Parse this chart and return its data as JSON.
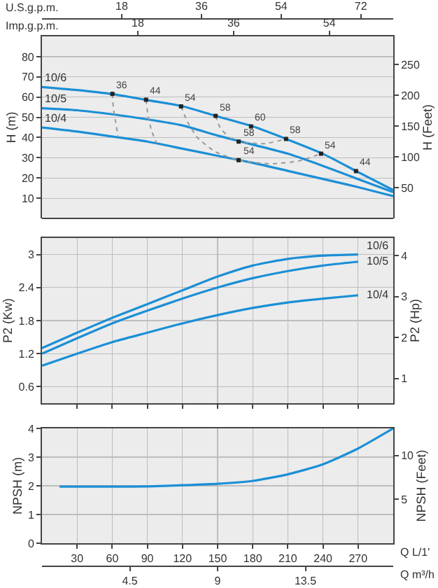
{
  "chart_data": [
    {
      "type": "line",
      "xlabel": "U.S.g.p.m.",
      "xlim": [
        0,
        79.3
      ],
      "xticks": [
        18,
        36,
        54,
        72
      ],
      "ylim": [
        0,
        90
      ],
      "yticks": [
        10,
        20,
        30,
        40,
        50,
        60,
        70,
        80
      ],
      "ylabel": "H (m)",
      "y2label": "H (Feet)",
      "y2lim": [
        0,
        295.3
      ],
      "y2ticks": [
        50,
        100,
        150,
        200,
        250
      ],
      "x2label": "Imp.g.p.m.",
      "x2lim": [
        0,
        66
      ],
      "x2ticks": [
        18,
        36,
        54
      ],
      "grid": "y",
      "legend": false,
      "x": [
        0,
        7.9,
        15.9,
        23.8,
        31.7,
        39.6,
        47.6,
        55.5,
        63.4,
        71.3,
        79.3
      ],
      "annotations": [
        {
          "text": "36",
          "x": 15.9,
          "y": 61.6
        },
        {
          "text": "44",
          "x": 23.5,
          "y": 58.7
        },
        {
          "text": "54",
          "x": 31.4,
          "y": 55.4
        },
        {
          "text": "58",
          "x": 39.2,
          "y": 50.7
        },
        {
          "text": "60",
          "x": 47.2,
          "y": 45.5
        },
        {
          "text": "58",
          "x": 55.1,
          "y": 39.3
        },
        {
          "text": "54",
          "x": 63,
          "y": 32
        },
        {
          "text": "44",
          "x": 70.9,
          "y": 23.4
        },
        {
          "text": "58",
          "x": 44.4,
          "y": 38
        },
        {
          "text": "54",
          "x": 44.4,
          "y": 28.8
        }
      ],
      "series": [
        {
          "name": "10/6",
          "color": "#1a8fd6",
          "values": [
            65,
            63.5,
            61.5,
            58.5,
            55.5,
            50.5,
            45.5,
            39,
            32,
            23,
            14
          ]
        },
        {
          "name": "10/5",
          "color": "#1a8fd6",
          "values": [
            54.5,
            53.5,
            51.5,
            49,
            46,
            41,
            36.5,
            32,
            26,
            19.5,
            13
          ]
        },
        {
          "name": "10/4",
          "color": "#1a8fd6",
          "values": [
            45,
            43,
            40.5,
            38,
            34.5,
            31,
            27.5,
            23.5,
            19.5,
            15.5,
            11
          ]
        },
        {
          "type": "line",
          "line_style": "dotted",
          "color": "#999999",
          "x": [
            15.9,
            16.1,
            16.6,
            17.2
          ],
          "values": [
            61.6,
            55,
            48,
            40.2
          ]
        },
        {
          "type": "line",
          "line_style": "dotted",
          "color": "#999999",
          "x": [
            23.5,
            24,
            24.8,
            25.9
          ],
          "values": [
            58.7,
            50,
            43,
            37.2
          ]
        },
        {
          "type": "line",
          "line_style": "dotted",
          "color": "#999999",
          "x": [
            31.4,
            32.8,
            35.1,
            39.1,
            44.4,
            51.5,
            58.1,
            63
          ],
          "values": [
            55.4,
            48,
            40,
            33,
            28.8,
            27,
            28.5,
            32
          ]
        },
        {
          "type": "line",
          "line_style": "dotted",
          "color": "#999999",
          "x": [
            39.2,
            40.2,
            42.3,
            44.4,
            50.2,
            55.1
          ],
          "values": [
            50.7,
            45,
            40,
            38,
            37,
            39.3
          ]
        },
        {
          "type": "scatter",
          "marker": "square",
          "color": "#222222",
          "x": [
            15.9,
            23.5,
            31.4,
            39.2,
            47.2,
            55.1,
            63,
            70.9,
            44.4,
            44.4
          ],
          "values": [
            61.6,
            58.7,
            55.4,
            50.7,
            45.5,
            39.3,
            32,
            23.4,
            38,
            28.8
          ]
        }
      ]
    },
    {
      "type": "line",
      "xlim": [
        0,
        300
      ],
      "xticks": [
        30,
        60,
        90,
        120,
        150,
        180,
        210,
        240,
        270
      ],
      "ylim": [
        0.3,
        3.3
      ],
      "yticks": [
        0.6,
        1.2,
        1.8,
        2.4,
        3
      ],
      "ylabel": "P2 (Kw)",
      "y2label": "P2 (Hp)",
      "y2lim": [
        0.4,
        4.43
      ],
      "y2ticks": [
        1,
        2,
        3,
        4
      ],
      "grid": true,
      "legend": false,
      "tick_labels": "y",
      "x": [
        0,
        30,
        60,
        90,
        120,
        150,
        180,
        210,
        240,
        270
      ],
      "series": [
        {
          "name": "10/6",
          "color": "#1a8fd6",
          "values": [
            1.3,
            1.58,
            1.85,
            2.1,
            2.35,
            2.6,
            2.8,
            2.92,
            2.98,
            3
          ]
        },
        {
          "name": "10/5",
          "color": "#1a8fd6",
          "values": [
            1.2,
            1.48,
            1.75,
            1.98,
            2.2,
            2.4,
            2.57,
            2.7,
            2.8,
            2.87
          ]
        },
        {
          "name": "10/4",
          "color": "#1a8fd6",
          "values": [
            0.98,
            1.2,
            1.41,
            1.58,
            1.75,
            1.9,
            2.03,
            2.13,
            2.2,
            2.26
          ]
        }
      ]
    },
    {
      "type": "line",
      "xlim": [
        0,
        300
      ],
      "xticks": [
        30,
        60,
        90,
        120,
        150,
        180,
        210,
        240,
        270
      ],
      "xlabel": "Q L/1'",
      "ylim": [
        0,
        4
      ],
      "yticks": [
        0,
        1,
        2,
        3,
        4
      ],
      "ylabel": "NPSH (m)",
      "y2label": "NPSH (Feet)",
      "y2lim": [
        0,
        13.1
      ],
      "y2ticks": [
        5,
        10
      ],
      "x2label": "Q m³/h",
      "x2lim": [
        0,
        18
      ],
      "x2ticks": [
        4.5,
        9,
        13.5
      ],
      "grid": true,
      "legend": false,
      "x": [
        15,
        60,
        90,
        120,
        150,
        180,
        210,
        240,
        270,
        300
      ],
      "series": [
        {
          "color": "#1a8fd6",
          "values": [
            1.97,
            1.97,
            1.98,
            2.02,
            2.07,
            2.17,
            2.4,
            2.75,
            3.3,
            4
          ]
        }
      ]
    }
  ]
}
